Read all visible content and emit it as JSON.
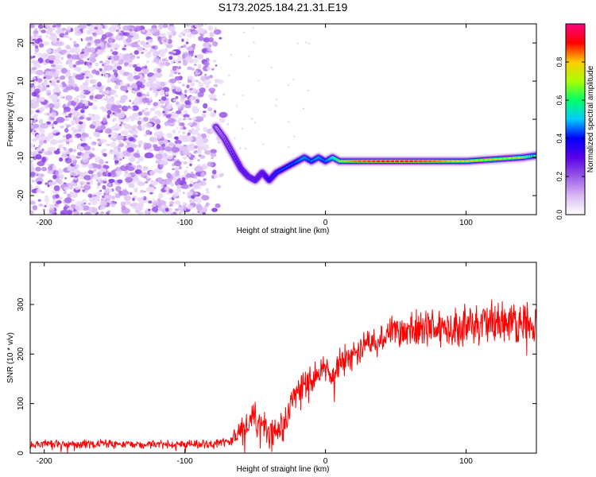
{
  "title": "S173.2025.184.21.31.E19",
  "chart_data": [
    {
      "type": "heatmap",
      "xlabel": "Height of straight line (km)",
      "ylabel": "Frequency (Hz)",
      "xlim": [
        -210,
        150
      ],
      "ylim": [
        -25,
        25
      ],
      "xticks": [
        -200,
        -100,
        0,
        100
      ],
      "yticks": [
        -20,
        -10,
        0,
        10,
        20
      ],
      "grid": false,
      "colorbar": {
        "label": "Normalized spectral amplitude",
        "range": [
          0,
          1
        ],
        "ticks": [
          "0.0",
          "0.2",
          "0.4",
          "0.6",
          "0.8"
        ],
        "colors": [
          "#ffffff",
          "#d8b8f4",
          "#9b59e6",
          "#5b00e8",
          "#0000ff",
          "#00ccff",
          "#00ff66",
          "#aaff00",
          "#ffcc00",
          "#ff0000",
          "#ff0080"
        ]
      },
      "signal_track": {
        "x": [
          -78,
          -72,
          -66,
          -60,
          -55,
          -50,
          -45,
          -40,
          -35,
          -30,
          -25,
          -20,
          -15,
          -10,
          -5,
          0,
          5,
          10,
          20,
          40,
          60,
          80,
          100,
          120,
          140,
          150
        ],
        "freq": [
          -2,
          -5,
          -9,
          -13,
          -15,
          -16,
          -14,
          -16,
          -14,
          -13,
          -12,
          -11,
          -10,
          -11,
          -10,
          -11,
          -10,
          -11,
          -11,
          -11,
          -11,
          -11,
          -11,
          -10.5,
          -10,
          -9.5
        ],
        "amplitude": [
          0.2,
          0.25,
          0.3,
          0.35,
          0.35,
          0.35,
          0.35,
          0.4,
          0.45,
          0.5,
          0.5,
          0.55,
          0.6,
          0.55,
          0.6,
          0.55,
          0.65,
          0.75,
          0.85,
          0.9,
          0.9,
          0.85,
          0.75,
          0.8,
          0.7,
          0.6
        ]
      },
      "noise_region": {
        "x_from": -210,
        "x_to": -70,
        "amplitude_range": [
          0.05,
          0.25
        ]
      }
    },
    {
      "type": "line",
      "xlabel": "Height of straight line (km)",
      "ylabel": "SNR (10 * v/v)",
      "xlim": [
        -210,
        150
      ],
      "ylim": [
        0,
        385
      ],
      "xticks": [
        -200,
        -100,
        0,
        100
      ],
      "yticks": [
        0,
        100,
        200,
        300
      ],
      "grid": false,
      "series": [
        {
          "color": "#ff0000",
          "trend_x": [
            -210,
            -80,
            -70,
            -60,
            -50,
            -40,
            -30,
            -25,
            -20,
            -10,
            0,
            5,
            10,
            20,
            30,
            40,
            50,
            60,
            80,
            100,
            120,
            140,
            150
          ],
          "trend_y": [
            18,
            18,
            22,
            45,
            70,
            40,
            55,
            95,
            130,
            150,
            175,
            150,
            185,
            200,
            225,
            235,
            245,
            245,
            255,
            255,
            265,
            265,
            265
          ],
          "noise_amplitude": [
            10,
            10,
            12,
            35,
            40,
            35,
            35,
            40,
            35,
            35,
            35,
            30,
            35,
            35,
            40,
            40,
            45,
            45,
            50,
            50,
            55,
            50,
            50
          ]
        }
      ]
    }
  ]
}
